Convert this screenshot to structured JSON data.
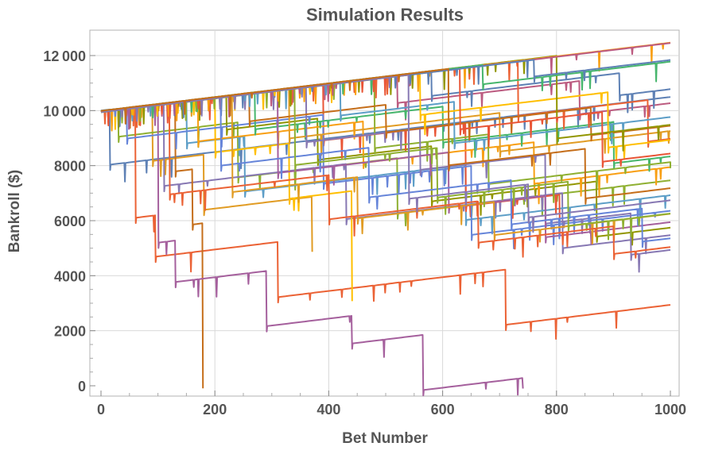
{
  "chart_data": {
    "type": "line",
    "title": "Simulation Results",
    "xlabel": "Bet Number",
    "ylabel": "Bankroll ($)",
    "xlim": [
      0,
      1000
    ],
    "ylim": [
      0,
      12500
    ],
    "x_ticks": [
      0,
      200,
      400,
      600,
      800,
      1000
    ],
    "x_tick_labels": [
      "0",
      "200",
      "400",
      "600",
      "800",
      "1000"
    ],
    "y_ticks": [
      0,
      2000,
      4000,
      6000,
      8000,
      10000,
      12000
    ],
    "y_tick_labels": [
      "0",
      "2000",
      "4000",
      "6000",
      "8000",
      "10 000",
      "12 000"
    ],
    "grid": true,
    "legend": "none",
    "start_bankroll": 10000,
    "end_bet": 1000,
    "growth_per_bet": 2.5,
    "palette": [
      "#5E81B5",
      "#E19C24",
      "#8FB032",
      "#EB6235",
      "#8778B3",
      "#C56E1A",
      "#5D9EC7",
      "#FFBF00",
      "#A5609D",
      "#929600",
      "#E95536",
      "#6685D9",
      "#F89F13",
      "#BC5B80",
      "#47B66D"
    ],
    "series": [
      {
        "start": 10000,
        "drops": [
          [
            15,
            2000,
            1.0
          ]
        ]
      },
      {
        "start": 9950,
        "drops": [
          [
            90,
            2000,
            1.0
          ],
          [
            180,
            2000,
            1.0
          ],
          [
            370,
            2000,
            0.0
          ]
        ]
      },
      {
        "start": 9980,
        "drops": [
          [
            30,
            1000,
            0.9
          ],
          [
            240,
            2000,
            1.0
          ],
          [
            520,
            2000,
            1.0
          ]
        ]
      },
      {
        "start": 9960,
        "drops": [
          [
            60,
            4000,
            1.0
          ],
          [
            95,
            1500,
            1.0
          ],
          [
            310,
            2000,
            1.0
          ],
          [
            710,
            2000,
            1.0
          ]
        ]
      },
      {
        "start": 9990,
        "drops": [
          [
            110,
            3000,
            1.0
          ],
          [
            430,
            2000,
            1.0
          ],
          [
            810,
            2000,
            1.0
          ]
        ]
      },
      {
        "start": 9970,
        "drops": [
          [
            130,
            2500,
            1.0
          ],
          [
            160,
            2000,
            1.0
          ],
          [
            178,
            6000,
            0.0
          ]
        ]
      },
      {
        "start": 9940,
        "drops": [
          [
            150,
            1500,
            1.0
          ],
          [
            250,
            2000,
            1.0
          ],
          [
            640,
            2000,
            1.0
          ]
        ]
      },
      {
        "start": 9985,
        "drops": [
          [
            200,
            2000,
            1.0
          ],
          [
            330,
            2000,
            1.0
          ],
          [
            440,
            4000,
            0.0
          ]
        ]
      },
      {
        "start": 9955,
        "drops": [
          [
            100,
            5000,
            1.0
          ],
          [
            130,
            1500,
            1.0
          ],
          [
            290,
            2000,
            1.0
          ],
          [
            440,
            1000,
            1.0
          ],
          [
            565,
            2000,
            1.0
          ],
          [
            740,
            1500,
            0.0
          ]
        ]
      },
      {
        "start": 9965,
        "drops": [
          [
            220,
            1200,
            1.0
          ],
          [
            380,
            1500,
            1.0
          ],
          [
            580,
            2000,
            1.0
          ],
          [
            870,
            2000,
            1.0
          ]
        ]
      },
      {
        "start": 9945,
        "drops": [
          [
            390,
            2000,
            1.0
          ],
          [
            640,
            3000,
            1.0
          ],
          [
            805,
            1500,
            0.0
          ]
        ]
      },
      {
        "start": 9975,
        "drops": [
          [
            45,
            1100,
            0.8
          ],
          [
            390,
            2500,
            1.0
          ],
          [
            650,
            2500,
            1.0
          ]
        ]
      },
      {
        "start": 9960,
        "drops": [
          [
            170,
            1500,
            1.0
          ],
          [
            460,
            1500,
            1.0
          ],
          [
            760,
            1500,
            1.0
          ]
        ]
      },
      {
        "start": 9980,
        "drops": [
          [
            520,
            1000,
            1.0
          ],
          [
            840,
            1200,
            1.0
          ]
        ]
      },
      {
        "start": 9950,
        "drops": [
          [
            270,
            1300,
            1.0
          ],
          [
            600,
            1300,
            1.0
          ],
          [
            900,
            1500,
            1.0
          ]
        ]
      },
      {
        "start": 9990,
        "drops": [
          [
            580,
            900,
            1.0
          ],
          [
            910,
            800,
            1.0
          ]
        ]
      },
      {
        "start": 9970,
        "drops": [
          [
            330,
            1800,
            1.0
          ],
          [
            700,
            1400,
            1.0
          ]
        ]
      },
      {
        "start": 9940,
        "drops": [
          [
            480,
            2500,
            1.0
          ],
          [
            680,
            1800,
            1.0
          ]
        ]
      },
      {
        "start": 9985,
        "drops": [
          [
            730,
            2000,
            1.0
          ],
          [
            960,
            1500,
            1.0
          ]
        ]
      },
      {
        "start": 9955,
        "drops": [
          [
            360,
            2000,
            1.0
          ],
          [
            560,
            1500,
            1.0
          ],
          [
            780,
            2500,
            1.0
          ],
          [
            930,
            1500,
            1.0
          ]
        ]
      },
      {
        "start": 9965,
        "drops": [
          [
            260,
            1000,
            1.0
          ],
          [
            500,
            1000,
            1.0
          ],
          [
            860,
            1000,
            1.0
          ]
        ]
      },
      {
        "start": 9975,
        "drops": [
          [
            420,
            1200,
            1.0
          ],
          [
            620,
            1500,
            1.0
          ]
        ]
      },
      {
        "start": 9945,
        "drops": [
          [
            560,
            1500,
            1.0
          ],
          [
            890,
            2000,
            1.0
          ]
        ]
      },
      {
        "start": 9960,
        "drops": [
          [
            310,
            3000,
            1.0
          ],
          [
            610,
            2000,
            1.0
          ],
          [
            780,
            1500,
            1.0
          ]
        ]
      },
      {
        "start": 9990,
        "drops": [
          [
            800,
            3000,
            1.0
          ]
        ]
      },
      {
        "start": 9950,
        "drops": [
          [
            630,
            2200,
            1.0
          ],
          [
            880,
            1800,
            1.0
          ]
        ]
      },
      {
        "start": 9980,
        "drops": [
          [
            210,
            2500,
            1.0
          ],
          [
            470,
            1800,
            1.0
          ],
          [
            720,
            1600,
            1.0
          ],
          [
            950,
            1200,
            1.0
          ]
        ]
      },
      {
        "start": 9970,
        "drops": []
      },
      {
        "start": 9955,
        "drops": []
      },
      {
        "start": 9985,
        "drops": [
          [
            670,
            700,
            1.0
          ]
        ]
      },
      {
        "start": 9945,
        "drops": [
          [
            760,
            600,
            1.0
          ]
        ]
      },
      {
        "start": 9965,
        "drops": [
          [
            230,
            3500,
            1.0
          ],
          [
            450,
            1500,
            1.0
          ],
          [
            690,
            1200,
            1.0
          ]
        ]
      },
      {
        "start": 9975,
        "drops": [
          [
            340,
            2800,
            1.0
          ],
          [
            590,
            1800,
            1.0
          ],
          [
            820,
            1600,
            1.0
          ]
        ]
      },
      {
        "start": 9960,
        "drops": [
          [
            120,
            3300,
            1.0
          ],
          [
            400,
            1600,
            1.0
          ],
          [
            660,
            1500,
            1.0
          ],
          [
            900,
            1000,
            1.0
          ]
        ]
      },
      {
        "start": 9950,
        "drops": [
          [
            540,
            4500,
            1.0
          ],
          [
            750,
            1200,
            1.0
          ]
        ]
      },
      {
        "start": 9990,
        "drops": [
          [
            610,
            3500,
            1.0
          ],
          [
            850,
            1800,
            1.0
          ]
        ]
      }
    ]
  }
}
